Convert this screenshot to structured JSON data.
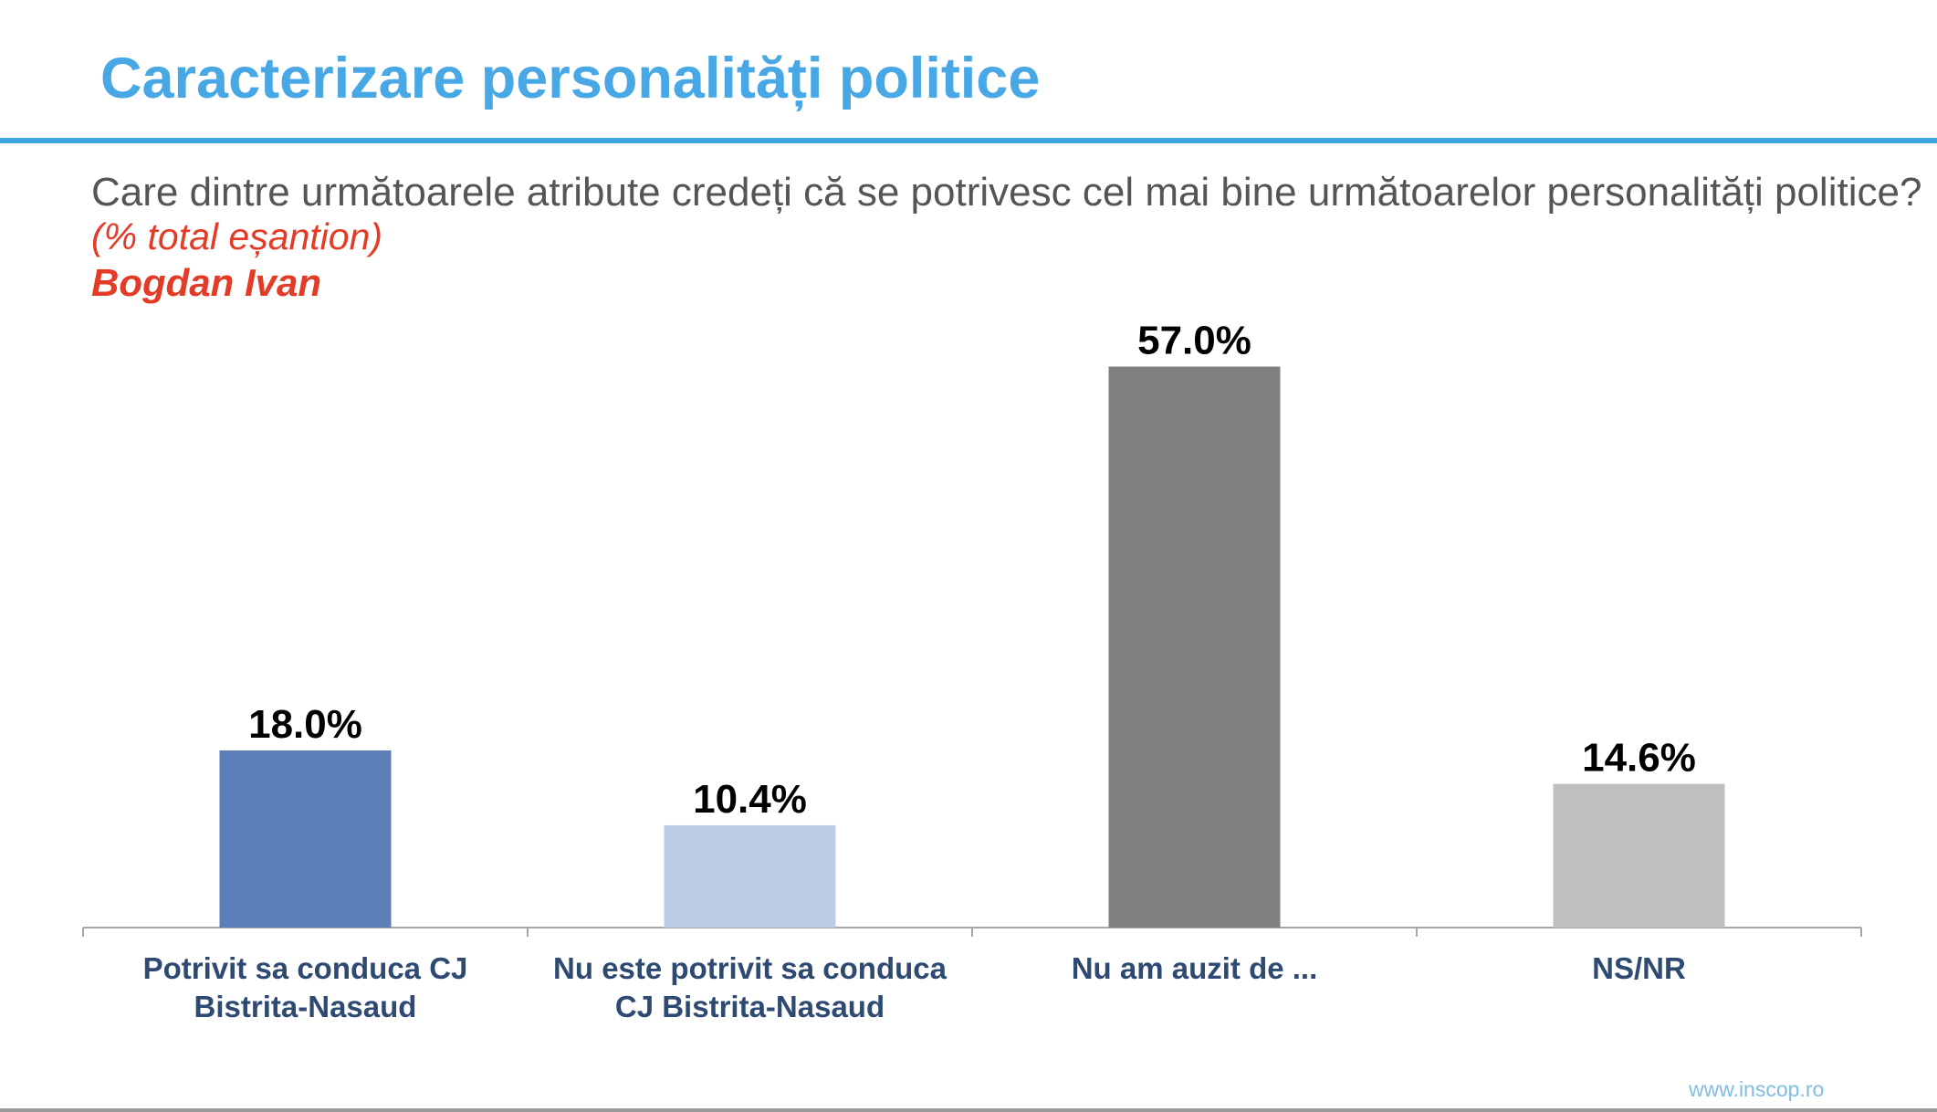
{
  "slide": {
    "title": "Caracterizare personalități politice",
    "question": "Care dintre următoarele atribute credeți că se potrivesc cel mai bine următoarelor personalități politice?",
    "subnote": "(% total eșantion)",
    "person": "Bogdan Ivan",
    "footer_url": "www.inscop.ro"
  },
  "chart_data": {
    "type": "bar",
    "title": "",
    "xlabel": "",
    "ylabel": "",
    "ylim": [
      0,
      60
    ],
    "grid": false,
    "legend": "none",
    "categories": [
      [
        "Potrivit sa conduca CJ",
        "Bistrita-Nasaud"
      ],
      [
        "Nu este potrivit sa conduca",
        "CJ Bistrita-Nasaud"
      ],
      [
        "Nu am auzit de ..."
      ],
      [
        "NS/NR"
      ]
    ],
    "values": [
      18.0,
      10.4,
      57.0,
      14.6
    ],
    "value_labels": [
      "18.0%",
      "10.4%",
      "57.0%",
      "14.6%"
    ],
    "colors": [
      "#5b7fb6",
      "#bccce4",
      "#808080",
      "#bfbfbf"
    ],
    "label_color": "#2f4a72",
    "axis_color": "#a6a6a6"
  }
}
